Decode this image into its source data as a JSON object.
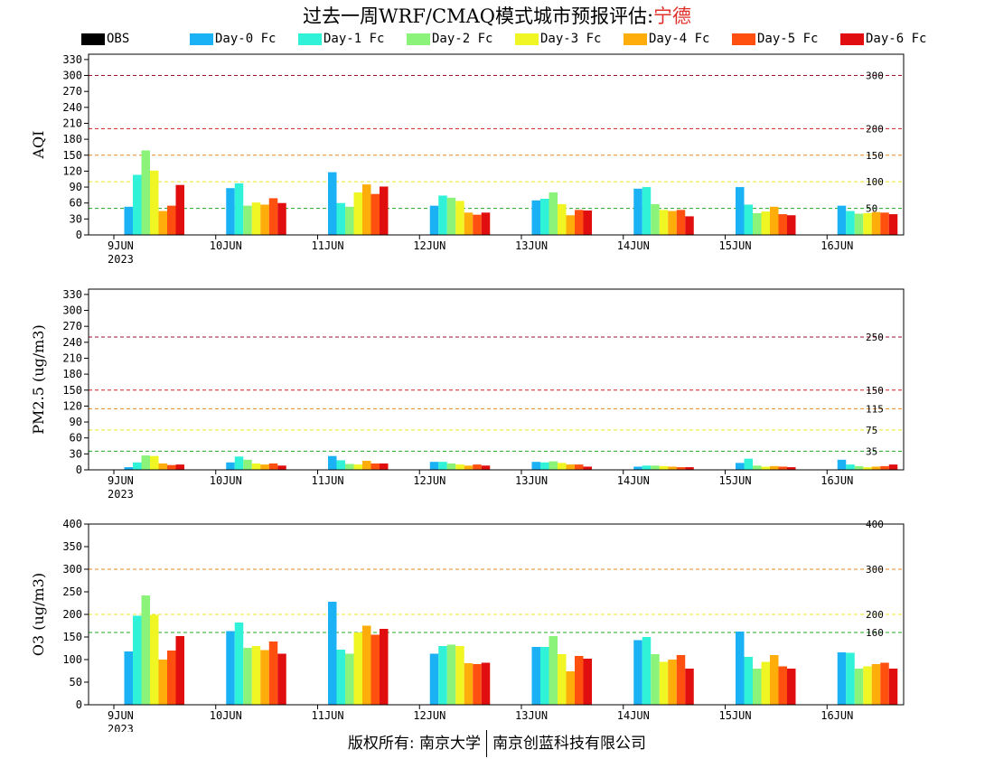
{
  "header": {
    "title_prefix": "过去一周WRF/CMAQ模式城市预报评估:",
    "city": "宁德"
  },
  "legend": [
    {
      "name": "OBS",
      "color": "#000000"
    },
    {
      "name": "Day-0 Fc",
      "color": "#1ab2f5"
    },
    {
      "name": "Day-1 Fc",
      "color": "#2ff2d8"
    },
    {
      "name": "Day-2 Fc",
      "color": "#8bf27a"
    },
    {
      "name": "Day-3 Fc",
      "color": "#f0f524"
    },
    {
      "name": "Day-4 Fc",
      "color": "#ffad0a"
    },
    {
      "name": "Day-5 Fc",
      "color": "#ff5010"
    },
    {
      "name": "Day-6 Fc",
      "color": "#e00e0e"
    }
  ],
  "footer": {
    "left": "版权所有: 南京大学",
    "right": "南京创蓝科技有限公司"
  },
  "chart_data": [
    {
      "type": "bar",
      "ylabel": "AQI",
      "ylim": [
        0,
        340
      ],
      "yticks": [
        0,
        30,
        60,
        90,
        120,
        150,
        180,
        210,
        240,
        270,
        300,
        330
      ],
      "categories": [
        "9JUN",
        "10JUN",
        "11JUN",
        "12JUN",
        "13JUN",
        "14JUN",
        "15JUN",
        "16JUN"
      ],
      "first_category_sublabel": "2023",
      "reference_lines": [
        {
          "value": 50,
          "label": "50",
          "color": "#22aa22"
        },
        {
          "value": 100,
          "label": "100",
          "color": "#e8e820"
        },
        {
          "value": 150,
          "label": "150",
          "color": "#e88a20"
        },
        {
          "value": 200,
          "label": "200",
          "color": "#d02020"
        },
        {
          "value": 300,
          "label": "300",
          "color": "#a01030"
        }
      ],
      "series": [
        {
          "name": "OBS",
          "values": [
            0,
            0,
            0,
            0,
            0,
            0,
            0,
            0
          ]
        },
        {
          "name": "Day-0 Fc",
          "values": [
            53,
            88,
            118,
            55,
            65,
            87,
            90,
            55
          ]
        },
        {
          "name": "Day-1 Fc",
          "values": [
            113,
            97,
            60,
            74,
            68,
            90,
            57,
            45
          ]
        },
        {
          "name": "Day-2 Fc",
          "values": [
            159,
            55,
            53,
            70,
            80,
            58,
            41,
            40
          ]
        },
        {
          "name": "Day-3 Fc",
          "values": [
            121,
            61,
            80,
            64,
            58,
            47,
            44,
            41
          ]
        },
        {
          "name": "Day-4 Fc",
          "values": [
            45,
            57,
            95,
            42,
            37,
            45,
            53,
            43
          ]
        },
        {
          "name": "Day-5 Fc",
          "values": [
            55,
            69,
            77,
            38,
            47,
            47,
            39,
            42
          ]
        },
        {
          "name": "Day-6 Fc",
          "values": [
            94,
            60,
            91,
            42,
            46,
            35,
            37,
            39
          ]
        }
      ]
    },
    {
      "type": "bar",
      "ylabel": "PM2.5 (ug/m3)",
      "ylim": [
        0,
        340
      ],
      "yticks": [
        0,
        30,
        60,
        90,
        120,
        150,
        180,
        210,
        240,
        270,
        300,
        330
      ],
      "categories": [
        "9JUN",
        "10JUN",
        "11JUN",
        "12JUN",
        "13JUN",
        "14JUN",
        "15JUN",
        "16JUN"
      ],
      "first_category_sublabel": "2023",
      "reference_lines": [
        {
          "value": 35,
          "label": "35",
          "color": "#22aa22"
        },
        {
          "value": 75,
          "label": "75",
          "color": "#e8e820"
        },
        {
          "value": 115,
          "label": "115",
          "color": "#e88a20"
        },
        {
          "value": 150,
          "label": "150",
          "color": "#d02020"
        },
        {
          "value": 250,
          "label": "250",
          "color": "#a01030"
        }
      ],
      "series": [
        {
          "name": "OBS",
          "values": [
            0,
            0,
            0,
            0,
            0,
            0,
            0,
            0
          ]
        },
        {
          "name": "Day-0 Fc",
          "values": [
            5,
            14,
            26,
            15,
            15,
            6,
            13,
            19
          ]
        },
        {
          "name": "Day-1 Fc",
          "values": [
            14,
            25,
            18,
            15,
            14,
            8,
            21,
            10
          ]
        },
        {
          "name": "Day-2 Fc",
          "values": [
            27,
            19,
            11,
            12,
            16,
            8,
            8,
            7
          ]
        },
        {
          "name": "Day-3 Fc",
          "values": [
            26,
            12,
            10,
            10,
            13,
            7,
            6,
            5
          ]
        },
        {
          "name": "Day-4 Fc",
          "values": [
            12,
            10,
            17,
            8,
            10,
            6,
            7,
            6
          ]
        },
        {
          "name": "Day-5 Fc",
          "values": [
            9,
            12,
            12,
            10,
            10,
            5,
            6,
            7
          ]
        },
        {
          "name": "Day-6 Fc",
          "values": [
            10,
            8,
            12,
            8,
            6,
            5,
            5,
            10
          ]
        }
      ]
    },
    {
      "type": "bar",
      "ylabel": "O3 (ug/m3)",
      "ylim": [
        0,
        400
      ],
      "yticks": [
        0,
        50,
        100,
        150,
        200,
        250,
        300,
        350,
        400
      ],
      "categories": [
        "9JUN",
        "10JUN",
        "11JUN",
        "12JUN",
        "13JUN",
        "14JUN",
        "15JUN",
        "16JUN"
      ],
      "first_category_sublabel": "2023",
      "reference_lines": [
        {
          "value": 160,
          "label": "160",
          "color": "#22aa22"
        },
        {
          "value": 200,
          "label": "200",
          "color": "#e8e820"
        },
        {
          "value": 300,
          "label": "300",
          "color": "#e88a20"
        },
        {
          "value": 400,
          "label": "400",
          "color": "#d02020"
        }
      ],
      "series": [
        {
          "name": "OBS",
          "values": [
            0,
            0,
            0,
            0,
            0,
            0,
            0,
            0
          ]
        },
        {
          "name": "Day-0 Fc",
          "values": [
            118,
            163,
            228,
            113,
            128,
            143,
            162,
            116
          ]
        },
        {
          "name": "Day-1 Fc",
          "values": [
            197,
            182,
            122,
            130,
            128,
            150,
            106,
            115
          ]
        },
        {
          "name": "Day-2 Fc",
          "values": [
            242,
            126,
            113,
            133,
            152,
            112,
            80,
            80
          ]
        },
        {
          "name": "Day-3 Fc",
          "values": [
            199,
            130,
            160,
            130,
            112,
            95,
            95,
            85
          ]
        },
        {
          "name": "Day-4 Fc",
          "values": [
            100,
            121,
            175,
            92,
            74,
            100,
            110,
            90
          ]
        },
        {
          "name": "Day-5 Fc",
          "values": [
            120,
            140,
            155,
            90,
            108,
            110,
            85,
            93
          ]
        },
        {
          "name": "Day-6 Fc",
          "values": [
            152,
            113,
            168,
            93,
            102,
            80,
            80,
            80
          ]
        }
      ]
    }
  ]
}
